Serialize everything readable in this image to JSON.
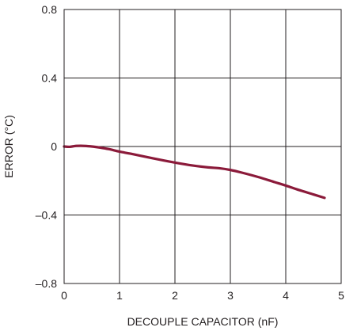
{
  "chart_data": {
    "type": "line",
    "title": "",
    "xlabel": "DECOUPLE CAPACITOR (nF)",
    "ylabel": "ERROR (°C)",
    "xlim": [
      0,
      5
    ],
    "ylim": [
      -0.8,
      0.8
    ],
    "x_ticks": [
      0,
      1,
      2,
      3,
      4,
      5
    ],
    "y_ticks": [
      -0.8,
      -0.4,
      0,
      0.4,
      0.8
    ],
    "x_tick_labels": [
      "0",
      "1",
      "2",
      "3",
      "4",
      "5"
    ],
    "y_tick_labels": [
      "–0.8",
      "–0.4",
      "0",
      "0.4",
      "0.8"
    ],
    "grid": true,
    "series": [
      {
        "color": "#8b1a3a",
        "x": [
          0,
          0.1,
          0.2,
          0.3,
          0.4,
          0.5,
          0.6,
          0.8,
          1.0,
          1.2,
          1.5,
          1.8,
          2.0,
          2.3,
          2.6,
          2.8,
          3.0,
          3.2,
          3.5,
          3.8,
          4.0,
          4.2,
          4.5,
          4.7
        ],
        "y": [
          0,
          -0.002,
          0.003,
          0.004,
          0.003,
          0.0,
          -0.004,
          -0.015,
          -0.03,
          -0.042,
          -0.062,
          -0.082,
          -0.094,
          -0.11,
          -0.122,
          -0.127,
          -0.137,
          -0.152,
          -0.178,
          -0.208,
          -0.228,
          -0.25,
          -0.28,
          -0.3
        ]
      }
    ]
  }
}
